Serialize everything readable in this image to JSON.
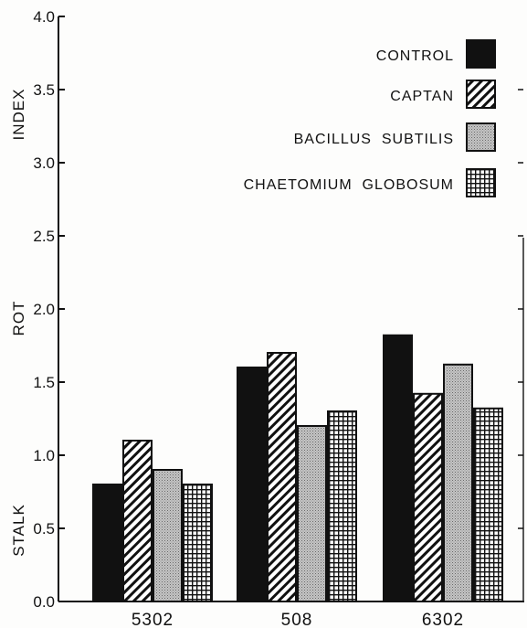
{
  "chart_data": {
    "type": "bar",
    "title": "",
    "xlabel": "",
    "ylabel": [
      "STALK",
      "ROT",
      "INDEX"
    ],
    "ylim": [
      0,
      4.0
    ],
    "yticks": [
      "0.0",
      "0.5",
      "1.0",
      "1.5",
      "2.0",
      "2.5",
      "3.0",
      "3.5",
      "4.0"
    ],
    "categories": [
      "5302",
      "508",
      "6302"
    ],
    "grid": false,
    "legend_position": "top-right",
    "series": [
      {
        "name": "CONTROL",
        "pattern": "solid",
        "values": [
          0.8,
          1.6,
          1.82
        ]
      },
      {
        "name": "CAPTAN",
        "pattern": "diagonal-hatch",
        "values": [
          1.1,
          1.7,
          1.42
        ]
      },
      {
        "name": "BACILLUS  SUBTILIS",
        "pattern": "stipple",
        "values": [
          0.9,
          1.2,
          1.62
        ]
      },
      {
        "name": "CHAETOMIUM  GLOBOSUM",
        "pattern": "grid-hatch",
        "values": [
          0.8,
          1.3,
          1.32
        ]
      }
    ],
    "colors": {
      "ink": "#111111",
      "stipple": "#bdbdbd",
      "background": "#fdfdfc"
    }
  }
}
